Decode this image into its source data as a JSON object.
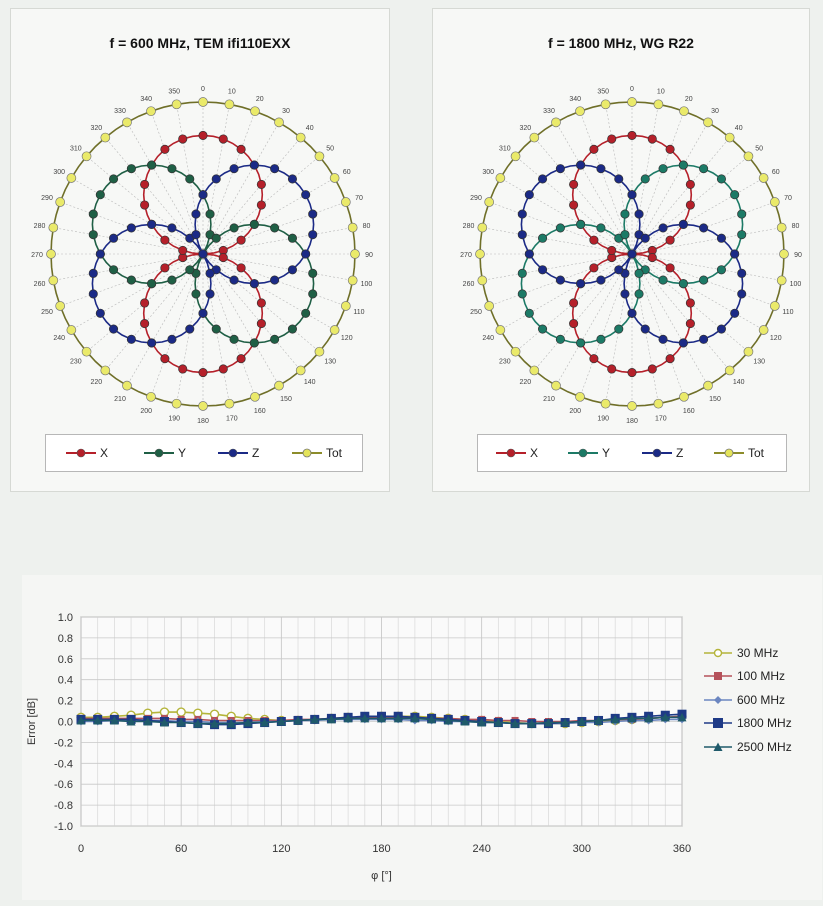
{
  "chart_data": [
    {
      "type": "polar",
      "title": "f = 600 MHz, TEM  ifi110EXX",
      "theta_ticks_deg": [
        0,
        10,
        20,
        30,
        40,
        50,
        60,
        70,
        80,
        90,
        100,
        110,
        120,
        130,
        140,
        150,
        160,
        170,
        180,
        190,
        200,
        210,
        220,
        230,
        240,
        250,
        260,
        270,
        280,
        290,
        300,
        310,
        320,
        330,
        340,
        350
      ],
      "theta_tick_labels": [
        "0",
        "10",
        "20",
        "30",
        "40",
        "50",
        "60",
        "70",
        "80",
        "90",
        "100",
        "110",
        "120",
        "130",
        "140",
        "150",
        "160",
        "170",
        "180",
        "190",
        "200",
        "210",
        "220",
        "230",
        "240",
        "250",
        "260",
        "270",
        "280",
        "290",
        "300",
        "310",
        "320",
        "330",
        "340",
        "350"
      ],
      "series": [
        {
          "name": "X",
          "color": "#b5202a",
          "marker": "circle",
          "shape": "abs_sin",
          "orientation_deg": 90,
          "amplitude": 0.78
        },
        {
          "name": "Y",
          "color": "#1f5f45",
          "marker": "circle",
          "shape": "abs_sin",
          "orientation_deg": 30,
          "amplitude": 0.78
        },
        {
          "name": "Z",
          "color": "#1b2a86",
          "marker": "circle",
          "shape": "abs_sin",
          "orientation_deg": 150,
          "amplitude": 0.78
        },
        {
          "name": "Tot",
          "color": "#d8d845",
          "marker": "circle",
          "shape": "constant",
          "amplitude": 1.0
        }
      ],
      "legend": [
        "X",
        "Y",
        "Z",
        "Tot"
      ]
    },
    {
      "type": "polar",
      "title": "f = 1800 MHz, WG R22",
      "theta_ticks_deg": [
        0,
        10,
        20,
        30,
        40,
        50,
        60,
        70,
        80,
        90,
        100,
        110,
        120,
        130,
        140,
        150,
        160,
        170,
        180,
        190,
        200,
        210,
        220,
        230,
        240,
        250,
        260,
        270,
        280,
        290,
        300,
        310,
        320,
        330,
        340,
        350
      ],
      "theta_tick_labels": [
        "0",
        "10",
        "20",
        "30",
        "40",
        "50",
        "60",
        "70",
        "80",
        "90",
        "100",
        "110",
        "120",
        "130",
        "140",
        "150",
        "160",
        "170",
        "180",
        "190",
        "200",
        "210",
        "220",
        "230",
        "240",
        "250",
        "260",
        "270",
        "280",
        "290",
        "300",
        "310",
        "320",
        "330",
        "340",
        "350"
      ],
      "series": [
        {
          "name": "X",
          "color": "#b5202a",
          "marker": "circle",
          "shape": "abs_sin",
          "orientation_deg": 90,
          "amplitude": 0.78
        },
        {
          "name": "Y",
          "color": "#1c7a66",
          "marker": "circle",
          "shape": "abs_sin",
          "orientation_deg": 150,
          "amplitude": 0.78
        },
        {
          "name": "Z",
          "color": "#1b2a86",
          "marker": "circle",
          "shape": "abs_sin",
          "orientation_deg": 30,
          "amplitude": 0.78
        },
        {
          "name": "Tot",
          "color": "#d8d845",
          "marker": "circle",
          "shape": "constant",
          "amplitude": 1.0
        }
      ],
      "legend": [
        "X",
        "Y",
        "Z",
        "Tot"
      ]
    },
    {
      "type": "line",
      "xlabel": "φ [°]",
      "ylabel": "Error [dB]",
      "xlim": [
        0,
        360
      ],
      "ylim": [
        -1.0,
        1.0
      ],
      "xticks": [
        0,
        60,
        120,
        180,
        240,
        300,
        360
      ],
      "xtick_labels": [
        "0",
        "60",
        "120",
        "180",
        "240",
        "300",
        "360"
      ],
      "yticks": [
        1.0,
        0.8,
        0.6,
        0.4,
        0.2,
        0.0,
        -0.2,
        -0.4,
        -0.6,
        -0.8,
        -1.0
      ],
      "ytick_labels": [
        "1.0",
        "0.8",
        "0.6",
        "0.4",
        "0.2",
        "0.0",
        "-0.2",
        "-0.4",
        "-0.6",
        "-0.8",
        "-1.0"
      ],
      "grid": true,
      "legend_position": "right",
      "x": [
        0,
        10,
        20,
        30,
        40,
        50,
        60,
        70,
        80,
        90,
        100,
        110,
        120,
        130,
        140,
        150,
        160,
        170,
        180,
        190,
        200,
        210,
        220,
        230,
        240,
        250,
        260,
        270,
        280,
        290,
        300,
        310,
        320,
        330,
        340,
        350,
        360
      ],
      "series": [
        {
          "name": "30 MHz",
          "color": "#b4b43a",
          "marker": "circle-open",
          "values": [
            0.04,
            0.04,
            0.05,
            0.06,
            0.08,
            0.09,
            0.09,
            0.08,
            0.07,
            0.05,
            0.03,
            0.02,
            0.01,
            0.01,
            0.02,
            0.03,
            0.04,
            0.04,
            0.05,
            0.05,
            0.05,
            0.04,
            0.03,
            0.02,
            0.01,
            0.0,
            -0.01,
            -0.02,
            -0.02,
            -0.02,
            -0.01,
            0.0,
            0.01,
            0.02,
            0.03,
            0.04,
            0.05
          ]
        },
        {
          "name": "100 MHz",
          "color": "#b5515a",
          "marker": "square",
          "values": [
            0.03,
            0.03,
            0.03,
            0.03,
            0.03,
            0.03,
            0.02,
            0.02,
            0.01,
            0.01,
            0.01,
            0.01,
            0.01,
            0.02,
            0.02,
            0.03,
            0.03,
            0.04,
            0.04,
            0.04,
            0.04,
            0.03,
            0.03,
            0.02,
            0.02,
            0.01,
            0.01,
            0.0,
            0.0,
            0.0,
            0.01,
            0.01,
            0.02,
            0.02,
            0.03,
            0.04,
            0.05
          ]
        },
        {
          "name": "600 MHz",
          "color": "#6b86c0",
          "marker": "diamond",
          "values": [
            0.0,
            0.0,
            0.01,
            0.01,
            0.01,
            0.01,
            0.0,
            0.0,
            -0.01,
            -0.01,
            -0.01,
            0.0,
            0.0,
            0.01,
            0.01,
            0.02,
            0.02,
            0.02,
            0.02,
            0.02,
            0.01,
            0.01,
            0.0,
            0.0,
            -0.01,
            -0.01,
            -0.02,
            -0.02,
            -0.02,
            -0.02,
            -0.01,
            -0.01,
            0.0,
            0.01,
            0.01,
            0.02,
            0.02
          ]
        },
        {
          "name": "1800 MHz",
          "color": "#1e3a86",
          "marker": "square",
          "values": [
            0.02,
            0.02,
            0.02,
            0.02,
            0.01,
            0.0,
            -0.01,
            -0.02,
            -0.03,
            -0.03,
            -0.02,
            -0.01,
            0.0,
            0.01,
            0.02,
            0.03,
            0.04,
            0.05,
            0.05,
            0.05,
            0.04,
            0.03,
            0.02,
            0.01,
            0.0,
            -0.01,
            -0.02,
            -0.02,
            -0.02,
            -0.01,
            0.0,
            0.01,
            0.03,
            0.04,
            0.05,
            0.06,
            0.07
          ]
        },
        {
          "name": "2500 MHz",
          "color": "#1f5a6a",
          "marker": "triangle",
          "values": [
            0.01,
            0.01,
            0.01,
            0.0,
            0.0,
            -0.01,
            -0.01,
            -0.02,
            -0.02,
            -0.02,
            -0.01,
            -0.01,
            0.0,
            0.01,
            0.02,
            0.02,
            0.03,
            0.03,
            0.03,
            0.03,
            0.03,
            0.02,
            0.01,
            0.0,
            -0.01,
            -0.01,
            -0.02,
            -0.02,
            -0.01,
            -0.01,
            0.0,
            0.01,
            0.02,
            0.03,
            0.03,
            0.04,
            0.04
          ]
        }
      ]
    }
  ]
}
